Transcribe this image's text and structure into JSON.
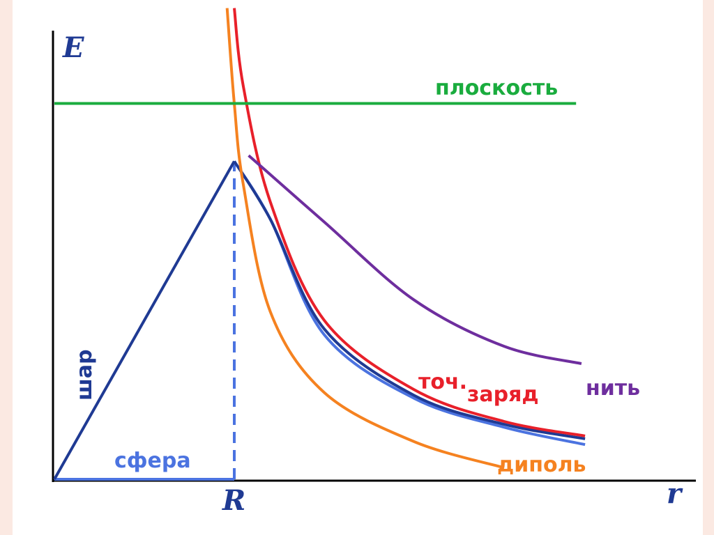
{
  "chart_data": {
    "type": "line",
    "title": "",
    "xlabel": "r",
    "ylabel": "E",
    "x_ticks": [
      "R"
    ],
    "xlim": [
      0,
      3.5
    ],
    "ylim": [
      0,
      1.5
    ],
    "colors": {
      "ploskost": "#1aac3e",
      "nit": "#6e2e9e",
      "tochzaryad": "#e8202a",
      "shar": "#1f3a93",
      "sfera": "#4b73e0",
      "dipol": "#f58220",
      "axes": "#000000"
    },
    "labels": {
      "ploskost": "плоскость",
      "nit": "нить",
      "toch": "точ.",
      "zaryad": "заряд",
      "shar": "шар",
      "sfera": "сфера",
      "dipol": "диполь"
    },
    "series": [
      {
        "name": "плоскость",
        "x": [
          0,
          2.9
        ],
        "y": [
          1.3,
          1.3
        ]
      },
      {
        "name": "нить",
        "x": [
          1.08,
          1.5,
          2.0,
          2.5,
          2.93
        ],
        "y": [
          1.12,
          0.89,
          0.62,
          0.46,
          0.4
        ]
      },
      {
        "name": "точ. заряд",
        "x": [
          1.0,
          1.05,
          1.2,
          1.5,
          2.0,
          2.5,
          2.95
        ],
        "y": [
          1.63,
          1.36,
          0.96,
          0.55,
          0.31,
          0.2,
          0.15
        ]
      },
      {
        "name": "шар",
        "x": [
          0,
          1.0,
          1.2,
          1.5,
          2.0,
          2.5,
          2.95
        ],
        "y": [
          0,
          1.1,
          0.9,
          0.52,
          0.29,
          0.19,
          0.14
        ]
      },
      {
        "name": "сфера",
        "x": [
          0,
          1.0,
          1.0,
          1.2,
          1.5,
          2.0,
          2.5,
          2.95
        ],
        "y": [
          0,
          0,
          1.1,
          0.9,
          0.5,
          0.28,
          0.18,
          0.12
        ]
      },
      {
        "name": "диполь",
        "x": [
          0.96,
          1.0,
          1.05,
          1.2,
          1.5,
          2.0,
          2.5
        ],
        "y": [
          1.63,
          1.3,
          1.02,
          0.58,
          0.3,
          0.13,
          0.04
        ]
      }
    ]
  }
}
